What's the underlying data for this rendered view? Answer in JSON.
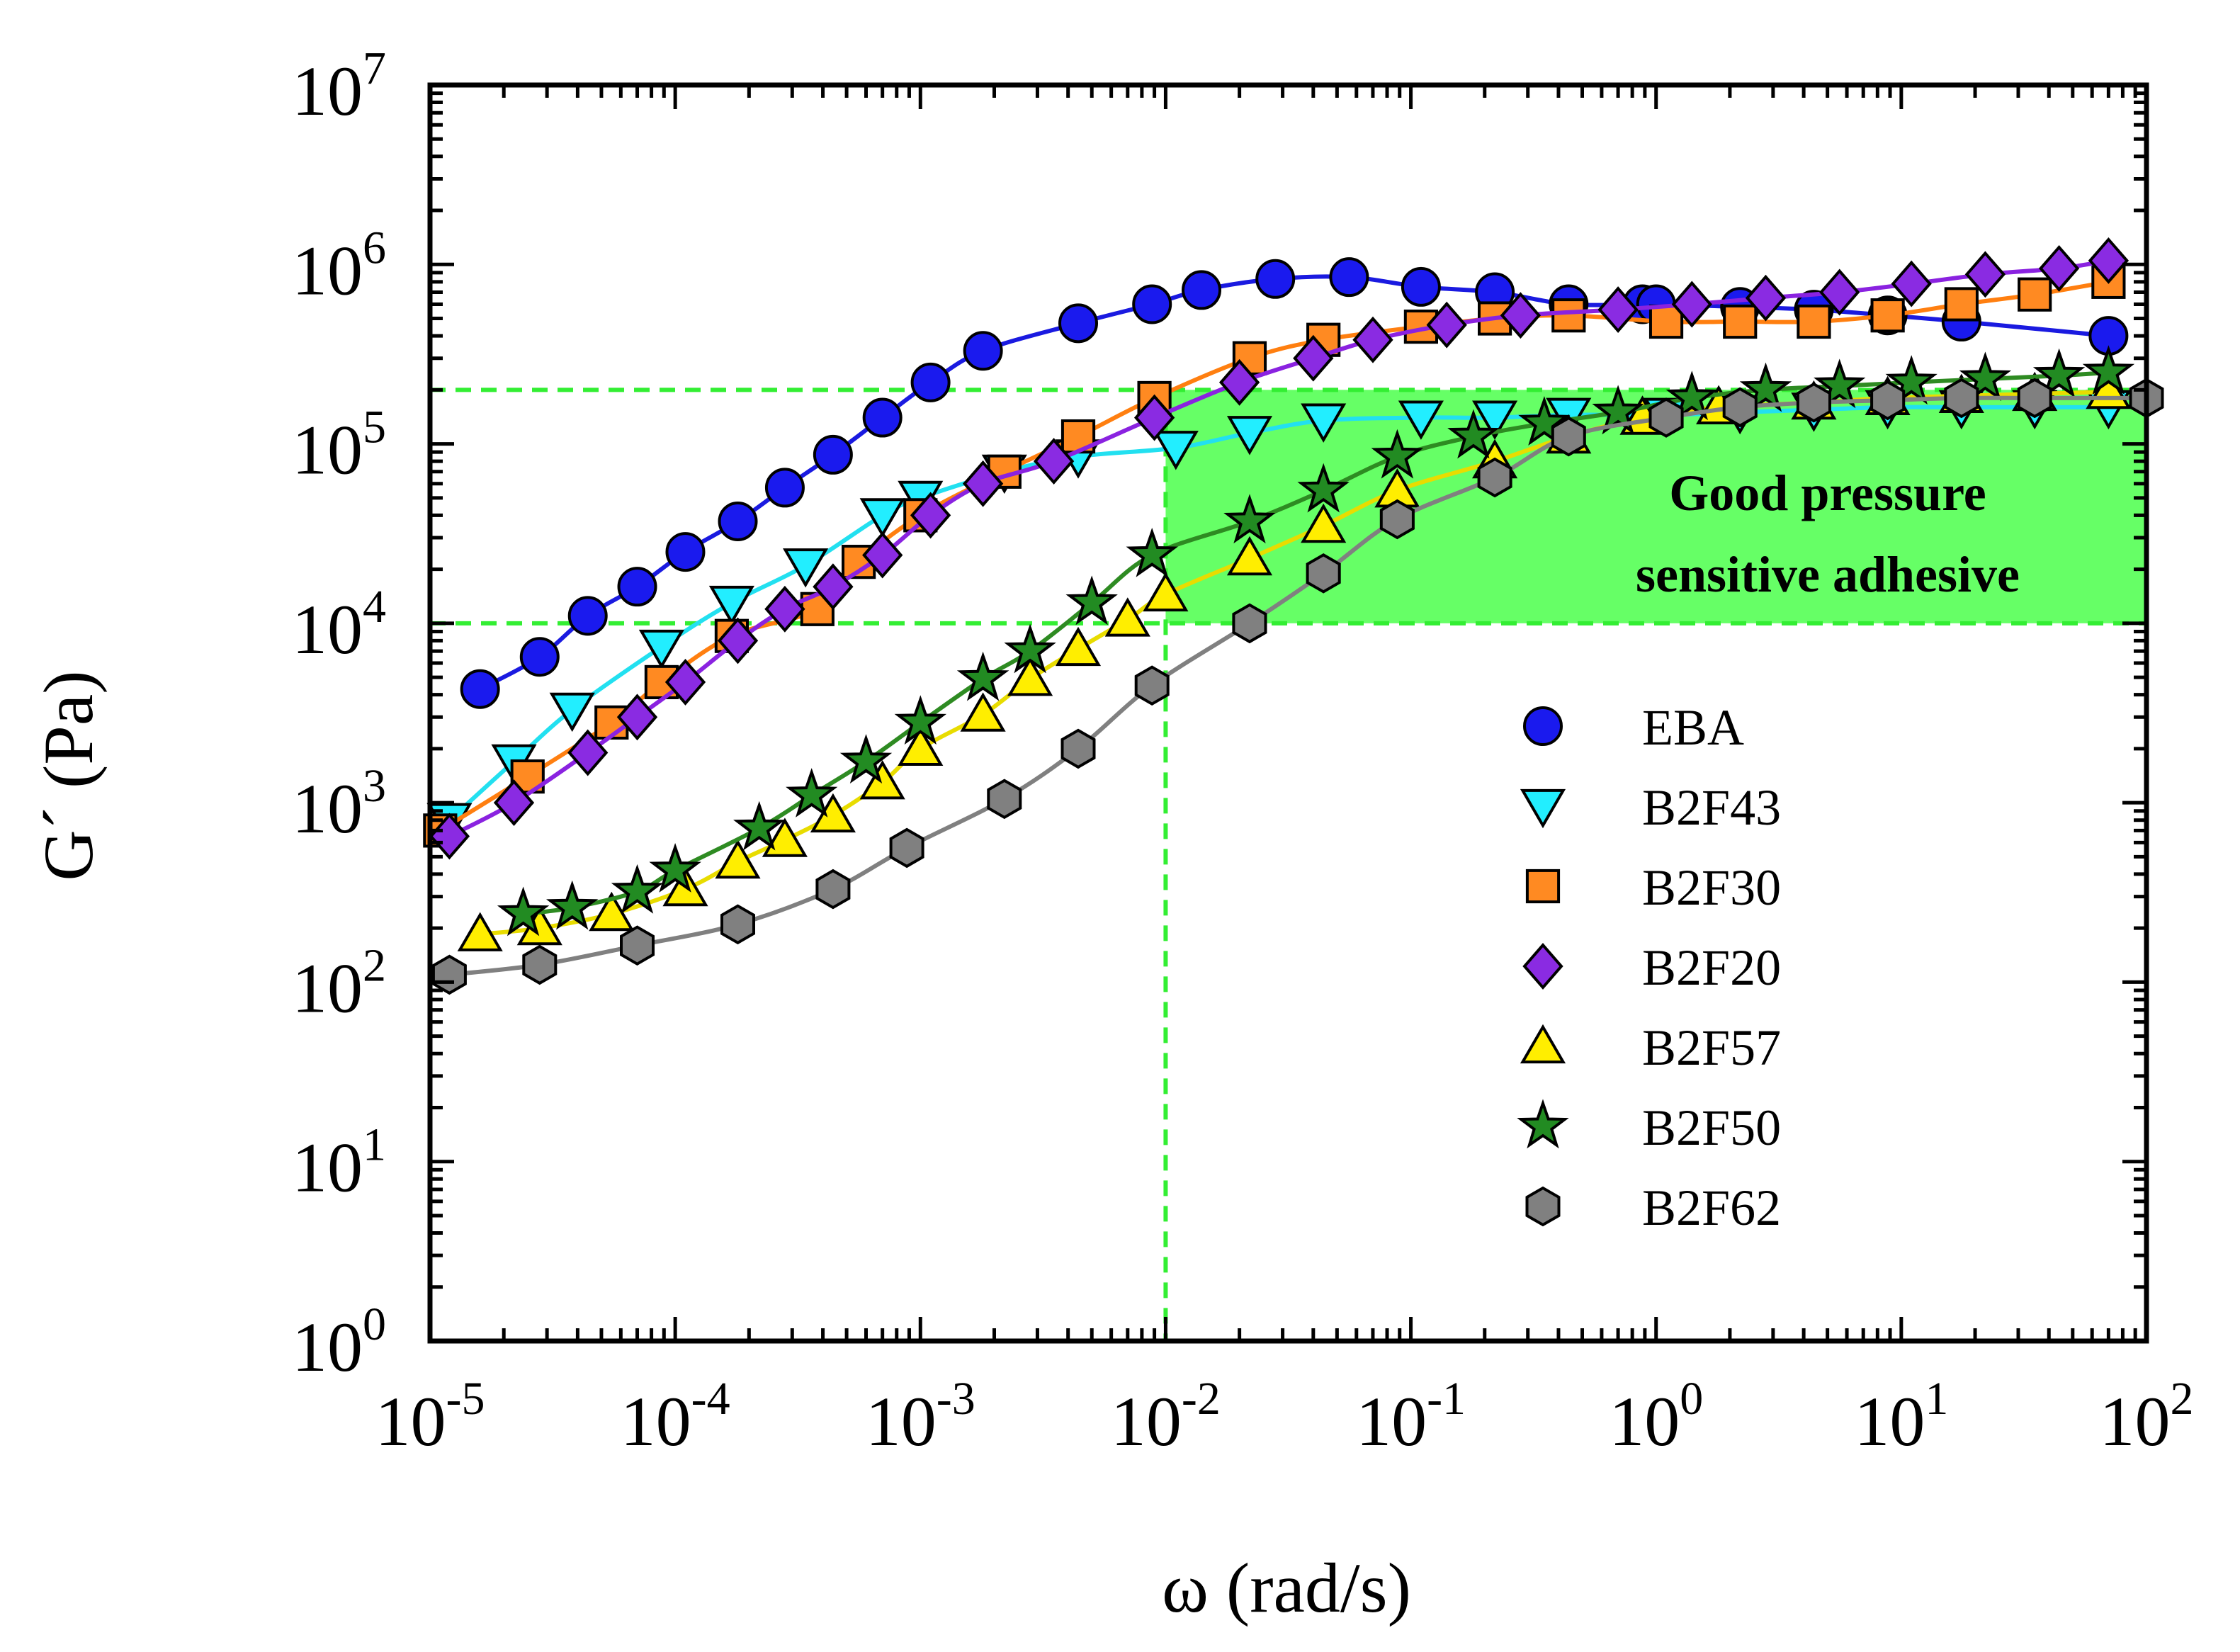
{
  "chart_data": {
    "type": "line",
    "xscale": "log",
    "yscale": "log",
    "xlim": [
      1e-05,
      100
    ],
    "ylim": [
      1,
      10000000
    ],
    "xlabel": "ω (rad/s)",
    "ylabel": "G´ (Pa)",
    "x_ticks": [
      {
        "base": "10",
        "exp": "-5"
      },
      {
        "base": "10",
        "exp": "-4"
      },
      {
        "base": "10",
        "exp": "-3"
      },
      {
        "base": "10",
        "exp": "-2"
      },
      {
        "base": "10",
        "exp": "-1"
      },
      {
        "base": "10",
        "exp": "0"
      },
      {
        "base": "10",
        "exp": "1"
      },
      {
        "base": "10",
        "exp": "2"
      }
    ],
    "y_ticks": [
      {
        "base": "10",
        "exp": "0"
      },
      {
        "base": "10",
        "exp": "1"
      },
      {
        "base": "10",
        "exp": "2"
      },
      {
        "base": "10",
        "exp": "3"
      },
      {
        "base": "10",
        "exp": "4"
      },
      {
        "base": "10",
        "exp": "5"
      },
      {
        "base": "10",
        "exp": "6"
      },
      {
        "base": "10",
        "exp": "7"
      }
    ],
    "region": {
      "label_line1": "Good pressure",
      "label_line2": "sensitive adhesive",
      "x_range": [
        0.01,
        100
      ],
      "y_range": [
        10000,
        200000
      ],
      "color": "#66ff66",
      "line_color": "#33ee33"
    },
    "legend_position": "center-right",
    "series": [
      {
        "name": "EBA",
        "marker": "circle",
        "color": "#1a1aee",
        "line_color": "#1a1ae0",
        "x": [
          1.6e-05,
          2.8e-05,
          4.4e-05,
          7e-05,
          0.00011,
          0.00018,
          0.00028,
          0.00044,
          0.0007,
          0.0011,
          0.0018,
          0.0044,
          0.0088,
          0.014,
          0.028,
          0.056,
          0.11,
          0.22,
          0.44,
          0.88,
          1.0,
          2.2,
          4.4,
          8.8,
          17.6,
          70
        ],
        "y": [
          4300,
          6500,
          11000,
          16000,
          25000,
          37000,
          57000,
          87000,
          140000,
          220000,
          330000,
          470000,
          600000,
          720000,
          830000,
          850000,
          750000,
          700000,
          600000,
          600000,
          600000,
          580000,
          560000,
          520000,
          480000,
          400000
        ]
      },
      {
        "name": "B2F43",
        "marker": "triangle-down",
        "color": "#22eeff",
        "line_color": "#22e0f0",
        "x": [
          1.2e-05,
          2.2e-05,
          3.8e-05,
          8.8e-05,
          0.00017,
          0.00034,
          0.0007,
          0.001,
          0.0022,
          0.0044,
          0.011,
          0.022,
          0.044,
          0.11,
          0.22,
          0.44,
          1.1,
          2.2,
          4.4,
          8.8,
          17.6,
          35,
          70
        ],
        "y": [
          800,
          1700,
          3300,
          7400,
          13000,
          21000,
          40000,
          50000,
          70000,
          85000,
          95000,
          115000,
          135000,
          140000,
          140000,
          145000,
          145000,
          150000,
          155000,
          160000,
          160000,
          160000,
          160000
        ]
      },
      {
        "name": "B2F30",
        "marker": "square",
        "color": "#ff8a22",
        "line_color": "#ff7f10",
        "x": [
          1.1e-05,
          2.5e-05,
          5.5e-05,
          8.8e-05,
          0.00017,
          0.00038,
          0.00056,
          0.001,
          0.0022,
          0.0044,
          0.009,
          0.022,
          0.044,
          0.11,
          0.22,
          0.44,
          1.1,
          2.2,
          4.4,
          8.8,
          17.6,
          35,
          70
        ],
        "y": [
          700,
          1400,
          2800,
          4700,
          8500,
          12000,
          22000,
          40000,
          70000,
          110000,
          180000,
          300000,
          380000,
          450000,
          500000,
          520000,
          480000,
          480000,
          480000,
          520000,
          600000,
          680000,
          800000
        ]
      },
      {
        "name": "B2F20",
        "marker": "diamond",
        "color": "#8a2be2",
        "line_color": "#8a22e0",
        "x": [
          1.2e-05,
          2.2e-05,
          4.4e-05,
          7e-05,
          0.00011,
          0.00018,
          0.00028,
          0.00044,
          0.0007,
          0.0011,
          0.0018,
          0.0035,
          0.009,
          0.02,
          0.04,
          0.07,
          0.14,
          0.28,
          0.7,
          1.4,
          2.8,
          5.6,
          11,
          22,
          44,
          70
        ],
        "y": [
          650,
          1000,
          1900,
          3000,
          4700,
          8000,
          12000,
          16000,
          24000,
          40000,
          60000,
          80000,
          140000,
          220000,
          300000,
          380000,
          460000,
          520000,
          560000,
          600000,
          650000,
          700000,
          780000,
          880000,
          950000,
          1050000
        ]
      },
      {
        "name": "B2F57",
        "marker": "triangle-up",
        "color": "#ffee00",
        "line_color": "#e8dc00",
        "x": [
          1.6e-05,
          2.8e-05,
          5.5e-05,
          0.00011,
          0.00018,
          0.00028,
          0.00044,
          0.0007,
          0.001,
          0.0018,
          0.0028,
          0.0044,
          0.007,
          0.01,
          0.022,
          0.044,
          0.088,
          0.22,
          0.44,
          0.88,
          1.8,
          4.4,
          8.8,
          17.6,
          35,
          70
        ],
        "y": [
          185,
          200,
          240,
          330,
          470,
          620,
          850,
          1300,
          2000,
          3100,
          4900,
          7200,
          10500,
          14500,
          23000,
          35000,
          55000,
          80000,
          110000,
          140000,
          160000,
          170000,
          180000,
          185000,
          190000,
          195000
        ]
      },
      {
        "name": "B2F50",
        "marker": "star",
        "color": "#228b22",
        "line_color": "#2e8b22",
        "x": [
          2.4e-05,
          3.8e-05,
          7e-05,
          0.0001,
          0.00022,
          0.00036,
          0.0006,
          0.001,
          0.0018,
          0.0028,
          0.005,
          0.0088,
          0.022,
          0.044,
          0.088,
          0.18,
          0.35,
          0.7,
          1.4,
          2.8,
          5.6,
          11,
          22,
          44,
          70
        ],
        "y": [
          240,
          260,
          320,
          420,
          720,
          1100,
          1700,
          2800,
          4900,
          7000,
          13000,
          24000,
          37000,
          55000,
          85000,
          110000,
          130000,
          150000,
          180000,
          200000,
          210000,
          220000,
          230000,
          240000,
          250000
        ]
      },
      {
        "name": "B2F62",
        "marker": "hexagon",
        "color": "#808080",
        "line_color": "#808080",
        "x": [
          1.2e-05,
          2.8e-05,
          7e-05,
          0.00018,
          0.00044,
          0.00088,
          0.0022,
          0.0044,
          0.0088,
          0.022,
          0.044,
          0.088,
          0.22,
          0.44,
          1.1,
          2.2,
          4.4,
          8.8,
          17.6,
          35,
          100
        ],
        "y": [
          110,
          125,
          160,
          210,
          330,
          560,
          1050,
          2000,
          4500,
          10000,
          19000,
          38000,
          65000,
          110000,
          140000,
          160000,
          170000,
          175000,
          180000,
          180000,
          180000
        ]
      }
    ]
  }
}
